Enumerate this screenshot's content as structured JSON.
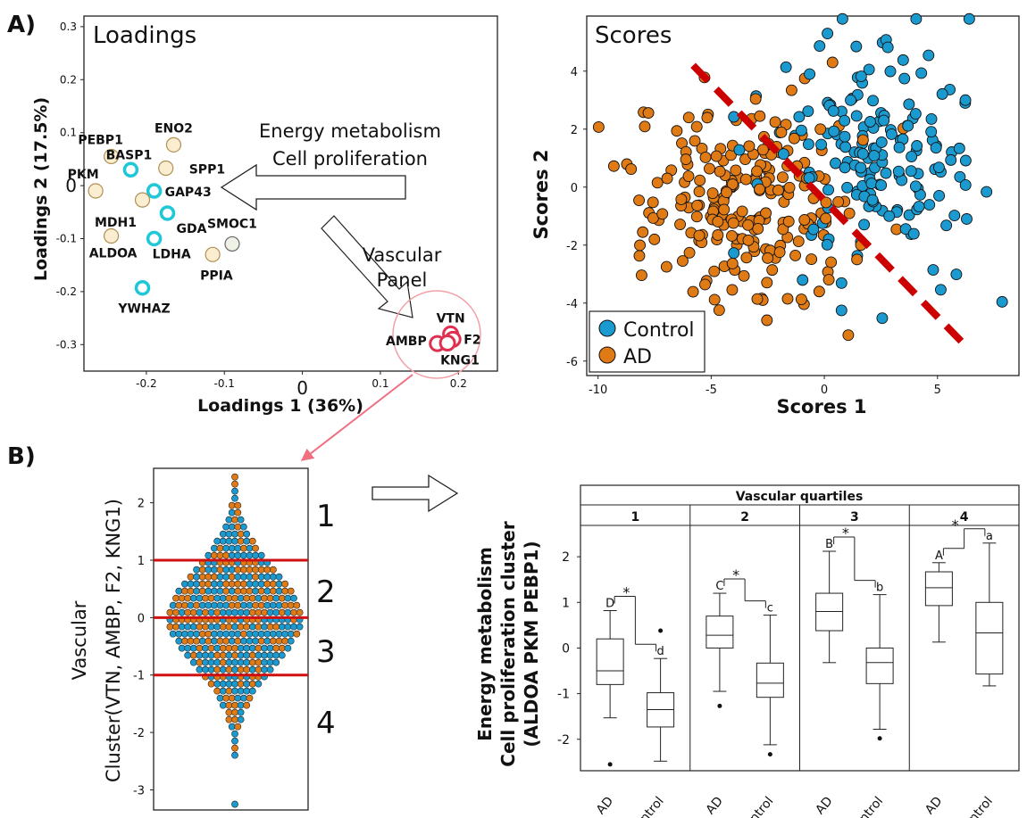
{
  "panel_labels": {
    "a": "A)",
    "b": "B)"
  },
  "chart_data": [
    {
      "type": "scatter",
      "title": "Loadings",
      "xlabel": "Loadings 1 (36%)",
      "ylabel": "Loadings 2 (17.5%)",
      "xlim": [
        -0.28,
        0.25
      ],
      "ylim": [
        -0.35,
        0.32
      ],
      "xticks": [
        "-0.2",
        "-0.1",
        "0",
        "0.1",
        "0.2"
      ],
      "yticks": [
        "0.3",
        "0.2",
        "0.1",
        "0",
        "-0.1",
        "-0.2",
        "-0.3"
      ],
      "annotations": {
        "energy": [
          "Energy metabolism",
          "Cell proliferation"
        ],
        "vascular": [
          "Vascular",
          "Panel"
        ]
      },
      "colors": {
        "cyan": "#1ec8d8",
        "beige": "#f5dfa8",
        "pale": "#e9eedd",
        "red": "#e03050"
      },
      "points": [
        {
          "label": "PEBP1",
          "x": -0.245,
          "y": 0.055,
          "kind": "beige"
        },
        {
          "label": "ENO2",
          "x": -0.165,
          "y": 0.077,
          "kind": "beige"
        },
        {
          "label": "BASP1",
          "x": -0.22,
          "y": 0.03,
          "kind": "cyan"
        },
        {
          "label": "SPP1",
          "x": -0.175,
          "y": 0.033,
          "kind": "beige"
        },
        {
          "label": "PKM",
          "x": -0.265,
          "y": -0.01,
          "kind": "beige"
        },
        {
          "label": "GAP43",
          "x": -0.19,
          "y": -0.01,
          "kind": "cyan"
        },
        {
          "label": "MDH1",
          "x": -0.205,
          "y": -0.027,
          "kind": "beige"
        },
        {
          "label": "GDA",
          "x": -0.173,
          "y": -0.052,
          "kind": "cyan"
        },
        {
          "label": "SMOC1",
          "x": -0.09,
          "y": -0.11,
          "kind": "pale"
        },
        {
          "label": "ALDOA",
          "x": -0.245,
          "y": -0.095,
          "kind": "beige"
        },
        {
          "label": "LDHA",
          "x": -0.19,
          "y": -0.1,
          "kind": "cyan"
        },
        {
          "label": "PPIA",
          "x": -0.115,
          "y": -0.13,
          "kind": "beige"
        },
        {
          "label": "YWHAZ",
          "x": -0.205,
          "y": -0.193,
          "kind": "cyan"
        },
        {
          "label": "VTN",
          "x": 0.19,
          "y": -0.28,
          "kind": "red"
        },
        {
          "label": "F2",
          "x": 0.193,
          "y": -0.29,
          "kind": "red"
        },
        {
          "label": "AMBP",
          "x": 0.173,
          "y": -0.298,
          "kind": "red"
        },
        {
          "label": "KNG1",
          "x": 0.186,
          "y": -0.297,
          "kind": "red"
        }
      ]
    },
    {
      "type": "scatter",
      "title": "Scores",
      "xlabel": "Scores 1",
      "ylabel": "Scores 2",
      "xlim": [
        -10.5,
        8.6
      ],
      "ylim": [
        -6.5,
        5.9
      ],
      "xticks": [
        "-10",
        "-5",
        "0",
        "5"
      ],
      "yticks": [
        "4",
        "2",
        "0",
        "-2",
        "-4",
        "-6"
      ],
      "legend": {
        "position": "bottom-left",
        "entries": [
          "Control",
          "AD"
        ]
      },
      "colors": {
        "Control": "#1b9ad0",
        "AD": "#e07a14",
        "line": "#cc0000"
      },
      "trend_line": {
        "from": [
          -5.8,
          4.2
        ],
        "to": [
          6.4,
          -5.6
        ]
      },
      "series": [
        {
          "name": "Control",
          "points_note": "approx. 170 points, mostly x 0..8, y -5..5.8"
        },
        {
          "name": "AD",
          "points_note": "approx. 230 points, mostly x -10..4, y -5..4"
        }
      ]
    },
    {
      "type": "scatter",
      "ylabel": "Vascular\nCluster(VTN, AMBP, F2, KNG1)",
      "ylim": [
        -3.35,
        2.6
      ],
      "yticks": [
        "2",
        "1",
        "0",
        "-1",
        "-2",
        "-3"
      ],
      "thresholds": [
        1,
        0,
        -1
      ],
      "quartile_labels": [
        "1",
        "2",
        "3",
        "4"
      ],
      "colors": {
        "a": "#1b9ad0",
        "b": "#e07a14",
        "threshold": "#d01010"
      }
    },
    {
      "type": "box",
      "header": "Vascular quartiles",
      "panels": [
        "1",
        "2",
        "3",
        "4"
      ],
      "ylabel": "Energy metabolism\nCell proliferation cluster\n(ALDOA PKM PEBP1)",
      "ylim": [
        -2.65,
        2.55
      ],
      "yticks": [
        "2",
        "1",
        "0",
        "-1",
        "-2"
      ],
      "categories": [
        "AD",
        "Control"
      ],
      "boxes": [
        [
          {
            "group": "AD",
            "min": -1.53,
            "q1": -0.8,
            "median": -0.5,
            "q3": 0.2,
            "max": 0.82,
            "outliers": [
              -2.55
            ],
            "letter": "D"
          },
          {
            "group": "Control",
            "min": -2.48,
            "q1": -1.73,
            "median": -1.35,
            "q3": -0.98,
            "max": -0.23,
            "outliers": [
              0.38
            ],
            "letter": "d"
          }
        ],
        [
          {
            "group": "AD",
            "min": -0.95,
            "q1": 0.0,
            "median": 0.28,
            "q3": 0.7,
            "max": 1.2,
            "outliers": [
              -1.27
            ],
            "letter": "C"
          },
          {
            "group": "Control",
            "min": -2.12,
            "q1": -1.08,
            "median": -0.77,
            "q3": -0.33,
            "max": 0.72,
            "outliers": [
              -2.33
            ],
            "letter": "c"
          }
        ],
        [
          {
            "group": "AD",
            "min": -0.32,
            "q1": 0.38,
            "median": 0.8,
            "q3": 1.2,
            "max": 2.12,
            "outliers": [],
            "letter": "B"
          },
          {
            "group": "Control",
            "min": -1.78,
            "q1": -0.78,
            "median": -0.32,
            "q3": 0.0,
            "max": 1.17,
            "outliers": [
              -1.98
            ],
            "letter": "b"
          }
        ],
        [
          {
            "group": "AD",
            "min": 0.13,
            "q1": 0.93,
            "median": 1.32,
            "q3": 1.67,
            "max": 1.87,
            "outliers": [],
            "letter": "A"
          },
          {
            "group": "Control",
            "min": -0.83,
            "q1": -0.57,
            "median": 0.33,
            "q3": 1.0,
            "max": 2.3,
            "outliers": [],
            "letter": "a"
          }
        ]
      ],
      "significance": "*"
    }
  ]
}
